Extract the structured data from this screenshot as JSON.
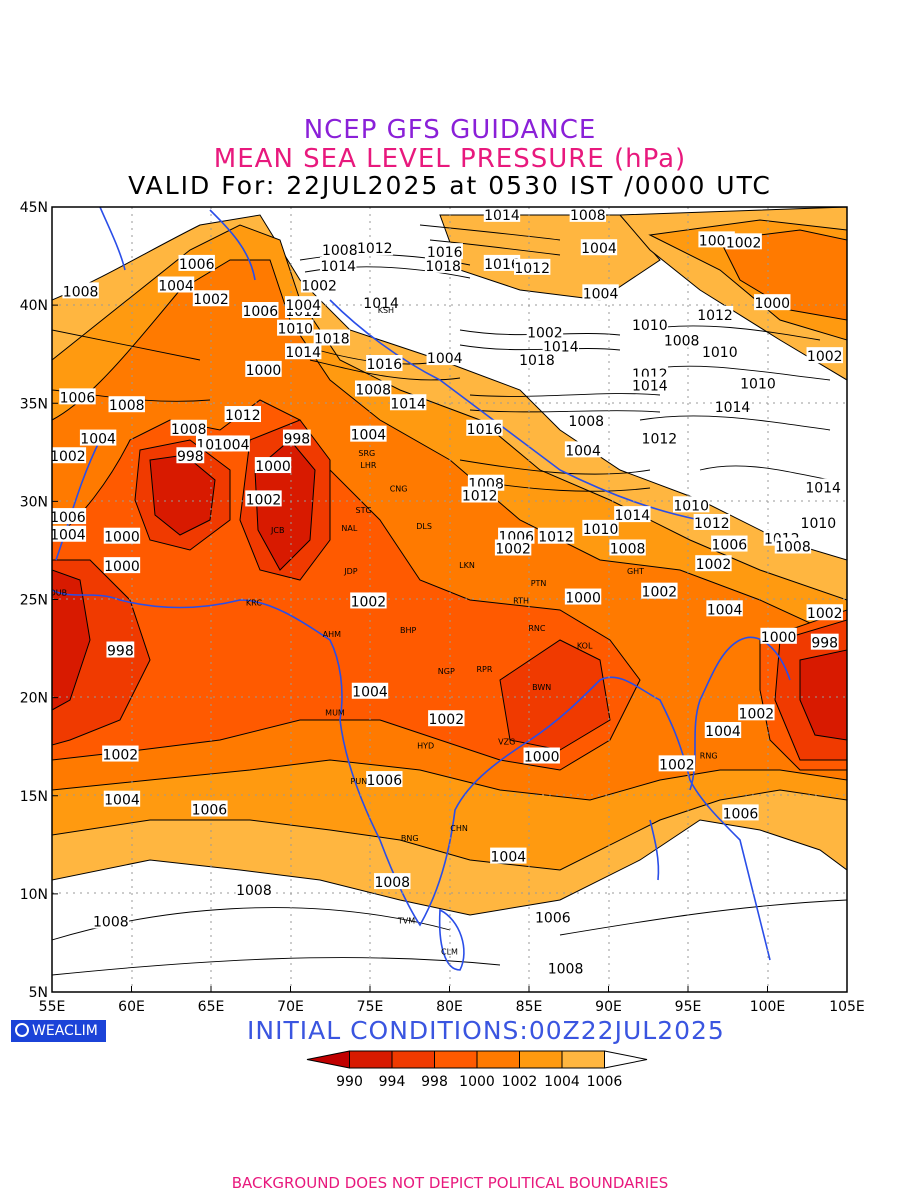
{
  "titles": {
    "line1": "NCEP GFS GUIDANCE",
    "line2": "MEAN SEA LEVEL PRESSURE (hPa)",
    "line3": "VALID For: 22JUL2025 at 0530 IST /0000 UTC"
  },
  "axes": {
    "lat_labels": [
      "45N",
      "40N",
      "35N",
      "30N",
      "25N",
      "20N",
      "15N",
      "10N",
      "5N"
    ],
    "lon_labels": [
      "55E",
      "60E",
      "65E",
      "70E",
      "75E",
      "80E",
      "85E",
      "90E",
      "95E",
      "100E",
      "105E"
    ]
  },
  "colorbar": {
    "labels": [
      "990",
      "994",
      "998",
      "1000",
      "1002",
      "1004",
      "1006"
    ],
    "colors": [
      "#c00000",
      "#d81a00",
      "#f03a00",
      "#ff5a00",
      "#ff7a00",
      "#ff9a10",
      "#ffb640",
      "#ffffff"
    ]
  },
  "contour_labels": [
    {
      "t": "1014",
      "lon": 83.3,
      "lat": 44.6
    },
    {
      "t": "1008",
      "lon": 88.7,
      "lat": 44.6
    },
    {
      "t": "1006",
      "lon": 64.1,
      "lat": 42.1
    },
    {
      "t": "1004",
      "lon": 62.8,
      "lat": 41.0
    },
    {
      "t": "1008",
      "lon": 56.8,
      "lat": 40.7
    },
    {
      "t": "1002",
      "lon": 65.0,
      "lat": 40.3
    },
    {
      "t": "1008",
      "lon": 73.1,
      "lat": 42.8
    },
    {
      "t": "1012",
      "lon": 75.3,
      "lat": 42.9
    },
    {
      "t": "1016",
      "lon": 79.7,
      "lat": 42.7
    },
    {
      "t": "1018",
      "lon": 79.6,
      "lat": 42.0
    },
    {
      "t": "1016",
      "lon": 83.3,
      "lat": 42.1
    },
    {
      "t": "1012",
      "lon": 85.2,
      "lat": 41.9
    },
    {
      "t": "1004",
      "lon": 89.4,
      "lat": 42.9
    },
    {
      "t": "1004",
      "lon": 96.8,
      "lat": 43.3
    },
    {
      "t": "1002",
      "lon": 98.5,
      "lat": 43.2
    },
    {
      "t": "1014",
      "lon": 73.0,
      "lat": 42.0
    },
    {
      "t": "1002",
      "lon": 71.8,
      "lat": 41.0
    },
    {
      "t": "1004",
      "lon": 89.5,
      "lat": 40.6
    },
    {
      "t": "1000",
      "lon": 100.3,
      "lat": 40.1
    },
    {
      "t": "1006",
      "lon": 68.1,
      "lat": 39.7
    },
    {
      "t": "1012",
      "lon": 70.8,
      "lat": 39.7
    },
    {
      "t": "1004",
      "lon": 70.8,
      "lat": 40.0
    },
    {
      "t": "1014",
      "lon": 75.7,
      "lat": 40.1
    },
    {
      "t": "1010",
      "lon": 70.3,
      "lat": 38.8
    },
    {
      "t": "1018",
      "lon": 72.6,
      "lat": 38.3
    },
    {
      "t": "1014",
      "lon": 70.8,
      "lat": 37.6
    },
    {
      "t": "1002",
      "lon": 86.0,
      "lat": 38.6
    },
    {
      "t": "1010",
      "lon": 92.6,
      "lat": 39.0
    },
    {
      "t": "1012",
      "lon": 96.7,
      "lat": 39.5
    },
    {
      "t": "1014",
      "lon": 87.0,
      "lat": 37.9
    },
    {
      "t": "1008",
      "lon": 94.6,
      "lat": 38.2
    },
    {
      "t": "1010",
      "lon": 97.0,
      "lat": 37.6
    },
    {
      "t": "1002",
      "lon": 103.6,
      "lat": 37.4
    },
    {
      "t": "1000",
      "lon": 68.3,
      "lat": 36.7
    },
    {
      "t": "1016",
      "lon": 75.9,
      "lat": 37.0
    },
    {
      "t": "1004",
      "lon": 79.7,
      "lat": 37.3
    },
    {
      "t": "1018",
      "lon": 85.5,
      "lat": 37.2
    },
    {
      "t": "1012",
      "lon": 92.6,
      "lat": 36.5
    },
    {
      "t": "1014",
      "lon": 92.6,
      "lat": 35.9
    },
    {
      "t": "1010",
      "lon": 99.4,
      "lat": 36.0
    },
    {
      "t": "1008",
      "lon": 75.2,
      "lat": 35.7
    },
    {
      "t": "1006",
      "lon": 56.6,
      "lat": 35.3
    },
    {
      "t": "1008",
      "lon": 59.7,
      "lat": 34.9
    },
    {
      "t": "1014",
      "lon": 77.4,
      "lat": 35.0
    },
    {
      "t": "1014",
      "lon": 97.8,
      "lat": 34.8
    },
    {
      "t": "1012",
      "lon": 67.0,
      "lat": 34.4
    },
    {
      "t": "1008",
      "lon": 63.6,
      "lat": 33.7
    },
    {
      "t": "1004",
      "lon": 74.9,
      "lat": 33.4
    },
    {
      "t": "998",
      "lon": 70.4,
      "lat": 33.2
    },
    {
      "t": "1002",
      "lon": 65.2,
      "lat": 32.9
    },
    {
      "t": "1004",
      "lon": 66.3,
      "lat": 32.9
    },
    {
      "t": "1004",
      "lon": 57.9,
      "lat": 33.2
    },
    {
      "t": "1008",
      "lon": 88.6,
      "lat": 34.1
    },
    {
      "t": "1016",
      "lon": 82.2,
      "lat": 33.7
    },
    {
      "t": "1012",
      "lon": 93.2,
      "lat": 33.2
    },
    {
      "t": "1004",
      "lon": 88.4,
      "lat": 32.6
    },
    {
      "t": "1002",
      "lon": 56.0,
      "lat": 32.3
    },
    {
      "t": "998",
      "lon": 63.7,
      "lat": 32.3
    },
    {
      "t": "1000",
      "lon": 68.9,
      "lat": 31.8
    },
    {
      "t": "1008",
      "lon": 82.3,
      "lat": 30.9
    },
    {
      "t": "1012",
      "lon": 81.9,
      "lat": 30.3
    },
    {
      "t": "1014",
      "lon": 103.5,
      "lat": 30.7
    },
    {
      "t": "1002",
      "lon": 68.3,
      "lat": 30.1
    },
    {
      "t": "1014",
      "lon": 91.5,
      "lat": 29.3
    },
    {
      "t": "1010",
      "lon": 95.2,
      "lat": 29.8
    },
    {
      "t": "1006",
      "lon": 56.0,
      "lat": 29.2
    },
    {
      "t": "1012",
      "lon": 96.5,
      "lat": 28.9
    },
    {
      "t": "1010",
      "lon": 103.2,
      "lat": 28.9
    },
    {
      "t": "1004",
      "lon": 56.0,
      "lat": 28.3
    },
    {
      "t": "1000",
      "lon": 59.4,
      "lat": 28.2
    },
    {
      "t": "1006",
      "lon": 84.2,
      "lat": 28.2
    },
    {
      "t": "1012",
      "lon": 86.7,
      "lat": 28.2
    },
    {
      "t": "1010",
      "lon": 89.5,
      "lat": 28.6
    },
    {
      "t": "1002",
      "lon": 84.0,
      "lat": 27.6
    },
    {
      "t": "1008",
      "lon": 91.2,
      "lat": 27.6
    },
    {
      "t": "1006",
      "lon": 97.6,
      "lat": 27.8
    },
    {
      "t": "1012",
      "lon": 100.9,
      "lat": 28.1
    },
    {
      "t": "1008",
      "lon": 101.6,
      "lat": 27.7
    },
    {
      "t": "1000",
      "lon": 59.4,
      "lat": 26.7
    },
    {
      "t": "1002",
      "lon": 96.6,
      "lat": 26.8
    },
    {
      "t": "1002",
      "lon": 74.9,
      "lat": 24.9
    },
    {
      "t": "1000",
      "lon": 88.4,
      "lat": 25.1
    },
    {
      "t": "1002",
      "lon": 93.2,
      "lat": 25.4
    },
    {
      "t": "1004",
      "lon": 97.3,
      "lat": 24.5
    },
    {
      "t": "1002",
      "lon": 103.6,
      "lat": 24.3
    },
    {
      "t": "1000",
      "lon": 100.7,
      "lat": 23.1
    },
    {
      "t": "998",
      "lon": 103.6,
      "lat": 22.8
    },
    {
      "t": "998",
      "lon": 59.3,
      "lat": 22.4
    },
    {
      "t": "1004",
      "lon": 75.0,
      "lat": 20.3
    },
    {
      "t": "1002",
      "lon": 99.3,
      "lat": 19.2
    },
    {
      "t": "1002",
      "lon": 79.8,
      "lat": 18.9
    },
    {
      "t": "1004",
      "lon": 97.2,
      "lat": 18.3
    },
    {
      "t": "1002",
      "lon": 59.3,
      "lat": 17.1
    },
    {
      "t": "1000",
      "lon": 85.8,
      "lat": 17.0
    },
    {
      "t": "1002",
      "lon": 94.3,
      "lat": 16.6
    },
    {
      "t": "1006",
      "lon": 75.9,
      "lat": 15.8
    },
    {
      "t": "1004",
      "lon": 59.4,
      "lat": 14.8
    },
    {
      "t": "1006",
      "lon": 64.9,
      "lat": 14.3
    },
    {
      "t": "1006",
      "lon": 98.3,
      "lat": 14.1
    },
    {
      "t": "1004",
      "lon": 83.7,
      "lat": 11.9
    },
    {
      "t": "1008",
      "lon": 76.4,
      "lat": 10.6
    },
    {
      "t": "1008",
      "lon": 67.7,
      "lat": 10.2
    },
    {
      "t": "1008",
      "lon": 58.7,
      "lat": 8.6
    },
    {
      "t": "1006",
      "lon": 86.5,
      "lat": 8.8
    },
    {
      "t": "1008",
      "lon": 87.3,
      "lat": 6.2
    }
  ],
  "cities": [
    {
      "t": "KSH",
      "lon": 76.0,
      "lat": 39.6
    },
    {
      "t": "SRG",
      "lon": 74.8,
      "lat": 32.3
    },
    {
      "t": "LHR",
      "lon": 74.9,
      "lat": 31.7
    },
    {
      "t": "CNG",
      "lon": 76.8,
      "lat": 30.5
    },
    {
      "t": "STG",
      "lon": 74.6,
      "lat": 29.4
    },
    {
      "t": "NAL",
      "lon": 73.7,
      "lat": 28.5
    },
    {
      "t": "DLS",
      "lon": 78.4,
      "lat": 28.6
    },
    {
      "t": "JCB",
      "lon": 69.2,
      "lat": 28.4
    },
    {
      "t": "JDP",
      "lon": 73.8,
      "lat": 26.3
    },
    {
      "t": "LKN",
      "lon": 81.1,
      "lat": 26.6
    },
    {
      "t": "PTN",
      "lon": 85.6,
      "lat": 25.7
    },
    {
      "t": "DUB",
      "lon": 55.4,
      "lat": 25.2
    },
    {
      "t": "KRC",
      "lon": 67.7,
      "lat": 24.7
    },
    {
      "t": "RTH",
      "lon": 84.5,
      "lat": 24.8
    },
    {
      "t": "GHT",
      "lon": 91.7,
      "lat": 26.3
    },
    {
      "t": "BHP",
      "lon": 77.4,
      "lat": 23.3
    },
    {
      "t": "RNC",
      "lon": 85.5,
      "lat": 23.4
    },
    {
      "t": "AHM",
      "lon": 72.6,
      "lat": 23.1
    },
    {
      "t": "KOL",
      "lon": 88.5,
      "lat": 22.5
    },
    {
      "t": "NGP",
      "lon": 79.8,
      "lat": 21.2
    },
    {
      "t": "RPR",
      "lon": 82.2,
      "lat": 21.3
    },
    {
      "t": "BWN",
      "lon": 85.8,
      "lat": 20.4
    },
    {
      "t": "MUM",
      "lon": 72.8,
      "lat": 19.1
    },
    {
      "t": "HYD",
      "lon": 78.5,
      "lat": 17.4
    },
    {
      "t": "VZG",
      "lon": 83.6,
      "lat": 17.6
    },
    {
      "t": "RNG",
      "lon": 96.3,
      "lat": 16.9
    },
    {
      "t": "PUN",
      "lon": 74.3,
      "lat": 15.6
    },
    {
      "t": "CHN",
      "lon": 80.6,
      "lat": 13.2
    },
    {
      "t": "BNG",
      "lon": 77.5,
      "lat": 12.7
    },
    {
      "t": "TVM",
      "lon": 77.3,
      "lat": 8.5
    },
    {
      "t": "CLM",
      "lon": 80.0,
      "lat": 6.9
    }
  ],
  "brand": "WEACLIM",
  "initial_conditions": "INITIAL  CONDITIONS:00Z22JUL2025",
  "footer": "BACKGROUND DOES NOT DEPICT POLITICAL BOUNDARIES"
}
